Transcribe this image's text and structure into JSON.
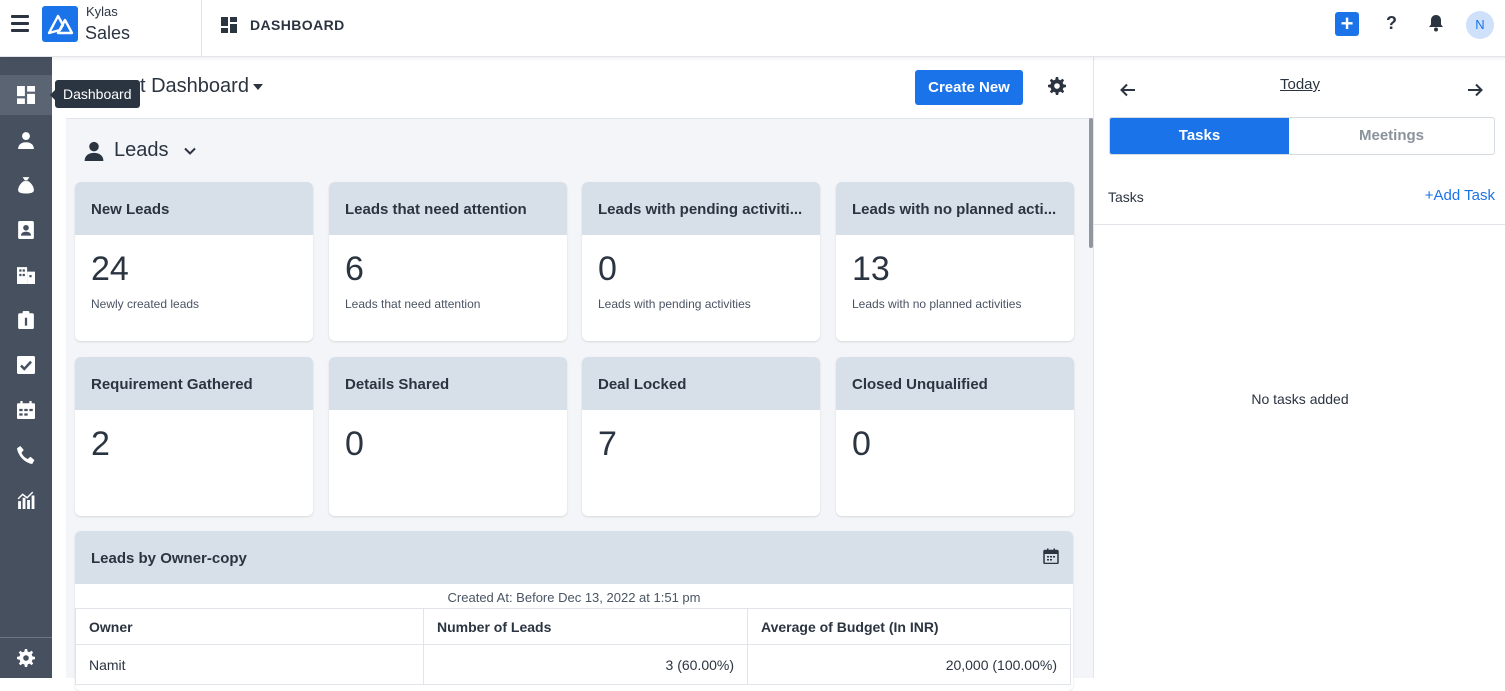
{
  "app": {
    "brand_top": "Kylas",
    "brand_bottom": "Sales",
    "page_name": "DASHBOARD",
    "avatar_initial": "N",
    "help_label": "?"
  },
  "sidebar": {
    "tooltip": "Dashboard",
    "items": [
      "dashboard-icon",
      "user-icon",
      "money-bag-icon",
      "contacts-icon",
      "building-icon",
      "clipboard-icon",
      "checkbox-icon",
      "calendar-icon",
      "phone-icon",
      "reports-icon"
    ],
    "bottom": "gear-icon"
  },
  "main": {
    "title": "t Dashboard",
    "create_label": "Create New",
    "section": "Leads",
    "cards": [
      {
        "title": "New Leads",
        "value": "24",
        "sub": "Newly created leads"
      },
      {
        "title": "Leads that need attention",
        "value": "6",
        "sub": "Leads that need attention"
      },
      {
        "title": "Leads with pending activiti...",
        "value": "0",
        "sub": "Leads with pending activities"
      },
      {
        "title": "Leads with no planned acti...",
        "value": "13",
        "sub": "Leads with no planned activities"
      },
      {
        "title": "Requirement Gathered",
        "value": "2",
        "sub": ""
      },
      {
        "title": "Details Shared",
        "value": "0",
        "sub": ""
      },
      {
        "title": "Deal Locked",
        "value": "7",
        "sub": ""
      },
      {
        "title": "Closed Unqualified",
        "value": "0",
        "sub": ""
      }
    ],
    "report": {
      "title": "Leads by Owner-copy",
      "caption": "Created At: Before Dec 13, 2022 at 1:51 pm",
      "columns": [
        "Owner",
        "Number of Leads",
        "Average of Budget (In INR)"
      ],
      "rows": [
        [
          "Namit",
          "3 (60.00%)",
          "20,000 (100.00%)"
        ]
      ]
    }
  },
  "right_panel": {
    "today": "Today",
    "tabs": [
      "Tasks",
      "Meetings"
    ],
    "tasks_label": "Tasks",
    "add_task": "+Add Task",
    "empty": "No tasks added"
  },
  "colors": {
    "accent": "#1a73e8",
    "sidebar": "#46505f",
    "card_header": "#d7e0e8"
  }
}
